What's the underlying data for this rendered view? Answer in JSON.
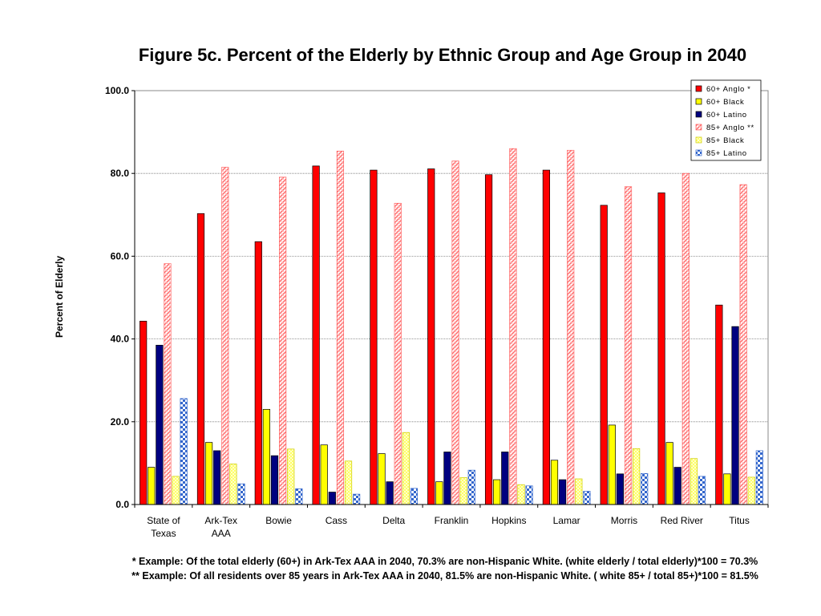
{
  "chart_data": {
    "type": "bar",
    "title": "Figure 5c.  Percent of the Elderly by Ethnic Group and Age Group in 2040",
    "ylabel": "Percent of Elderly",
    "xlabel": "",
    "ylim": [
      0,
      100
    ],
    "yticks": [
      "0.0",
      "20.0",
      "40.0",
      "60.0",
      "80.0",
      "100.0"
    ],
    "grid": true,
    "legend_position": "top-right",
    "categories": [
      [
        "State of",
        "Texas"
      ],
      [
        "Ark-Tex",
        "AAA"
      ],
      [
        "Bowie"
      ],
      [
        "Cass"
      ],
      [
        "Delta"
      ],
      [
        "Franklin"
      ],
      [
        "Hopkins"
      ],
      [
        "Lamar"
      ],
      [
        "Morris"
      ],
      [
        "Red River"
      ],
      [
        "Titus"
      ]
    ],
    "series": [
      {
        "name": "60+ Anglo *",
        "color": "#ff0000",
        "pattern": "solid",
        "values": [
          44.3,
          70.3,
          63.5,
          81.8,
          80.8,
          81.1,
          79.7,
          80.8,
          72.3,
          75.3,
          48.2
        ]
      },
      {
        "name": "60+ Black",
        "color": "#ffff00",
        "pattern": "solid",
        "values": [
          9.0,
          15.0,
          23.0,
          14.4,
          12.3,
          5.5,
          6.0,
          10.7,
          19.2,
          15.0,
          7.4
        ]
      },
      {
        "name": "60+ Latino",
        "color": "#000080",
        "pattern": "solid",
        "values": [
          38.5,
          13.0,
          11.8,
          3.0,
          5.5,
          12.7,
          12.7,
          6.0,
          7.4,
          9.0,
          43.0
        ]
      },
      {
        "name": "85+ Anglo **",
        "color": "#ff6666",
        "pattern": "hatch",
        "values": [
          58.2,
          81.5,
          79.1,
          85.4,
          72.8,
          83.0,
          86.0,
          85.6,
          76.8,
          80.0,
          77.3
        ]
      },
      {
        "name": "85+ Black",
        "color": "#ffff00",
        "pattern": "light",
        "values": [
          6.8,
          9.8,
          13.4,
          10.5,
          17.4,
          6.5,
          4.8,
          6.2,
          13.5,
          11.1,
          6.6
        ]
      },
      {
        "name": "85+ Latino",
        "color": "#3366cc",
        "pattern": "checker",
        "values": [
          25.6,
          5.0,
          3.8,
          2.5,
          3.9,
          8.3,
          4.5,
          3.2,
          7.5,
          6.8,
          13.0
        ]
      }
    ]
  },
  "footnotes": {
    "note1": "* Example: Of the total elderly (60+) in Ark-Tex AAA in 2040, 70.3% are non-Hispanic White.  (white elderly / total elderly)*100 = 70.3%",
    "note2": "** Example: Of all residents over 85 years in Ark-Tex AAA in 2040, 81.5% are non-Hispanic White.  ( white 85+ /  total 85+)*100 = 81.5%"
  }
}
